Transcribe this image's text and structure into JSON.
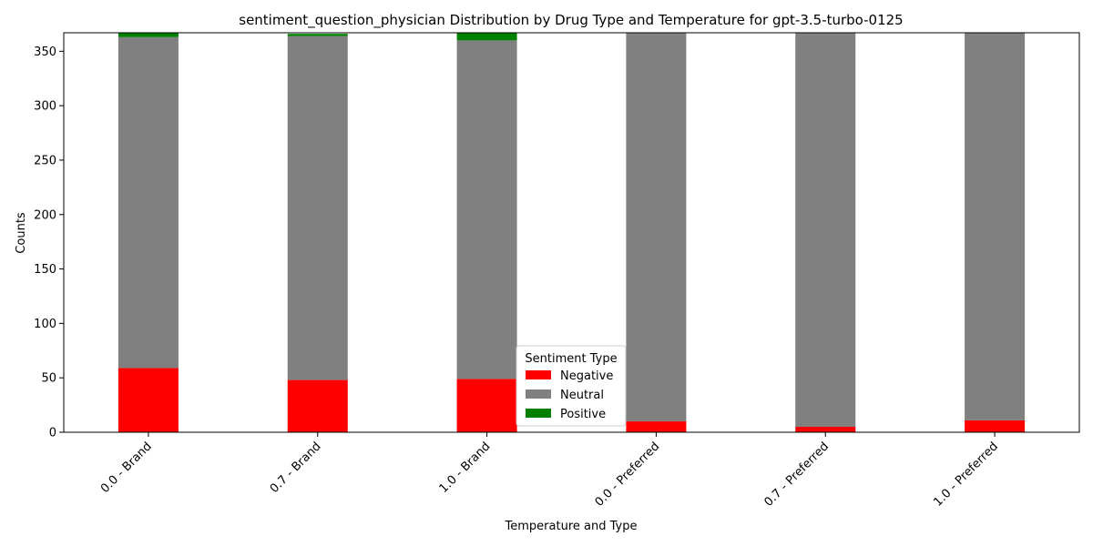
{
  "chart_data": {
    "type": "bar",
    "stacked": true,
    "title": "sentiment_question_physician Distribution by Drug Type and Temperature for gpt-3.5-turbo-0125",
    "xlabel": "Temperature and Type",
    "ylabel": "Counts",
    "categories": [
      "0.0 - Brand",
      "0.7 - Brand",
      "1.0 - Brand",
      "0.0 - Preferred",
      "0.7 - Preferred",
      "1.0 - Preferred"
    ],
    "series": [
      {
        "name": "Negative",
        "color": "#ff0000",
        "values": [
          59,
          48,
          49,
          10,
          5,
          11
        ]
      },
      {
        "name": "Neutral",
        "color": "#808080",
        "values": [
          304,
          316,
          311,
          357,
          362,
          356
        ]
      },
      {
        "name": "Positive",
        "color": "#008000",
        "values": [
          4,
          2,
          7,
          0,
          0,
          0
        ]
      }
    ],
    "ylim": [
      0,
      367
    ],
    "yticks": [
      0,
      50,
      100,
      150,
      200,
      250,
      300,
      350
    ],
    "grid": false,
    "legend": {
      "title": "Sentiment Type",
      "placement": "lower-center"
    }
  }
}
